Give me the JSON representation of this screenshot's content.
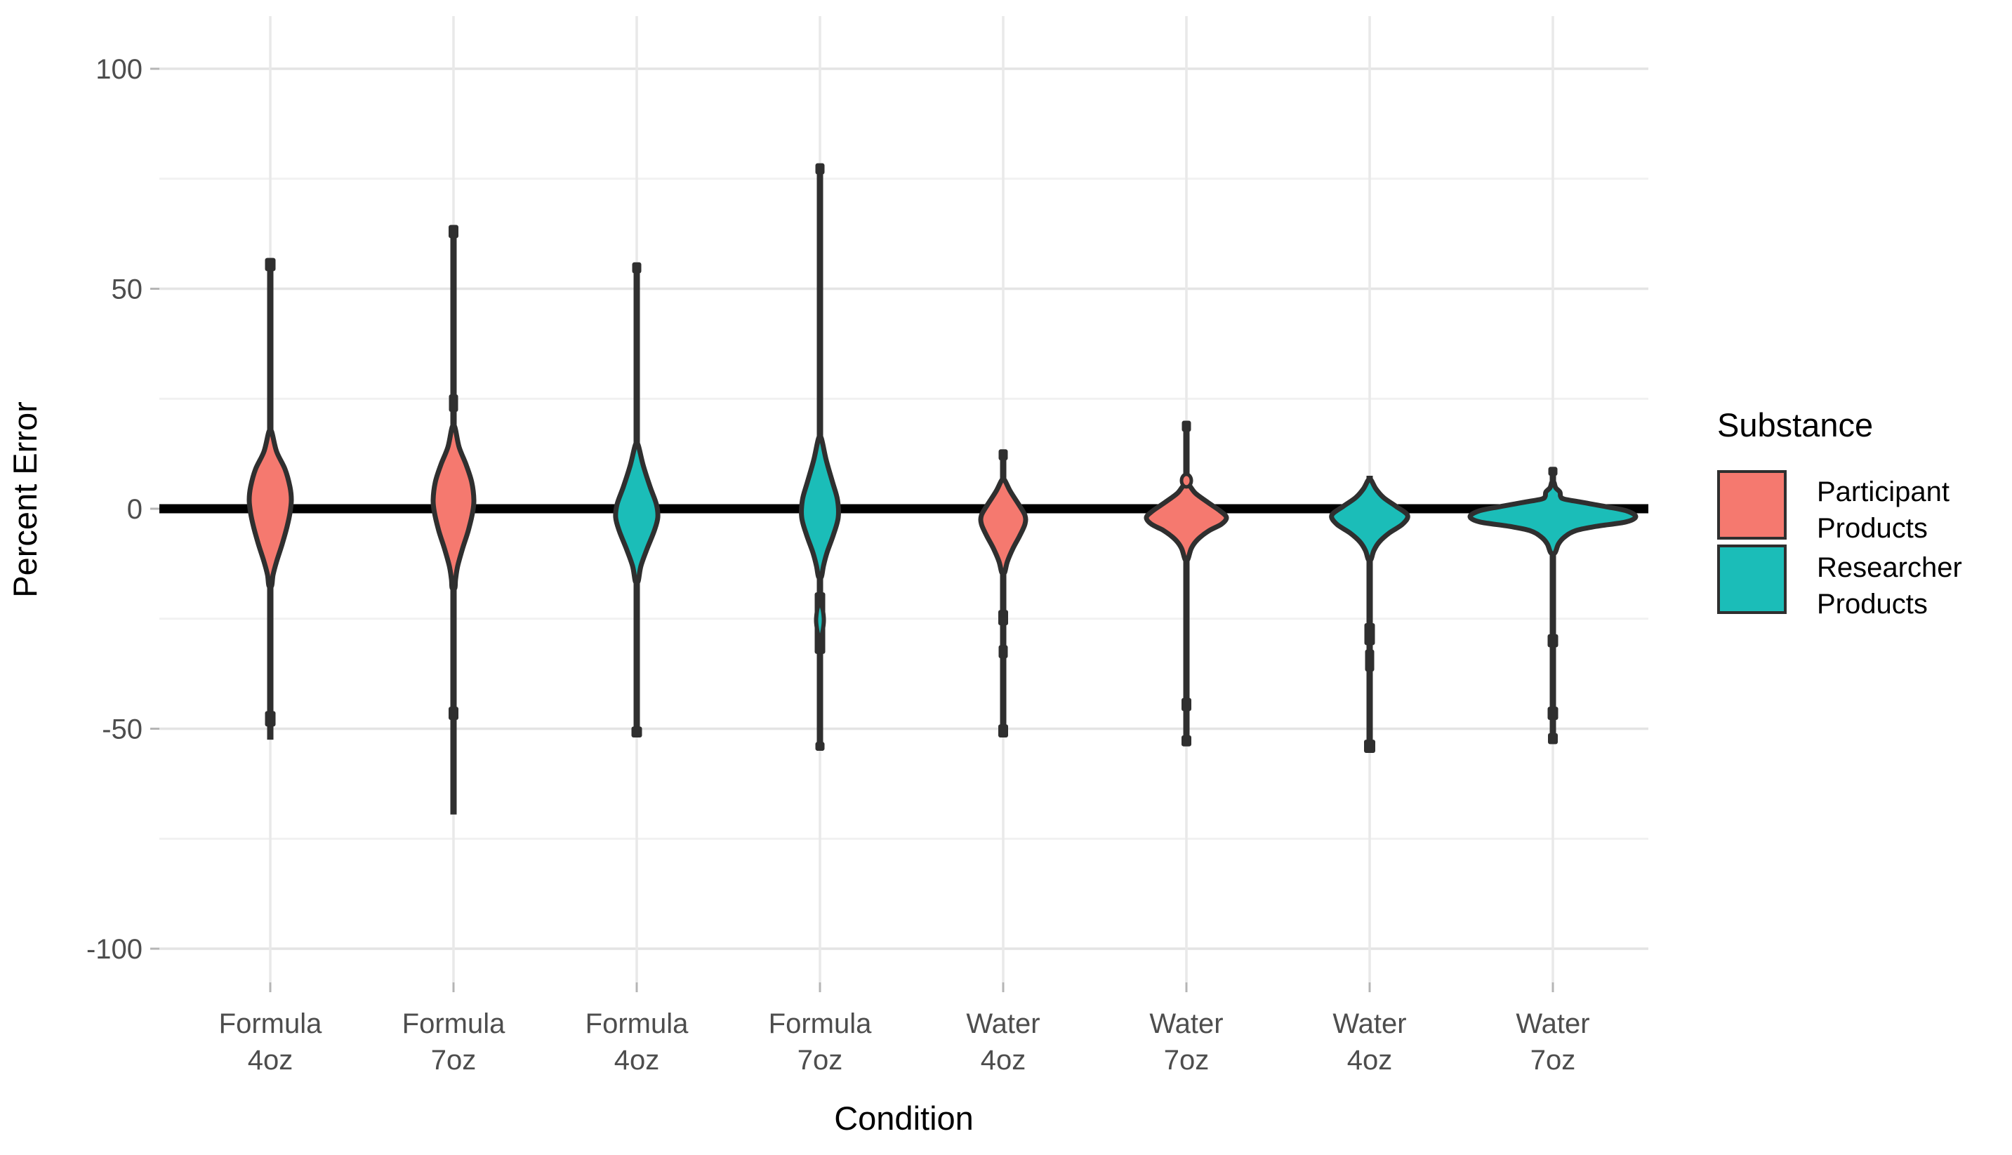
{
  "chart_data": {
    "type": "violin",
    "title": "",
    "xlabel": "Condition",
    "ylabel": "Percent Error",
    "ylim": [
      -112,
      112
    ],
    "yticks": [
      100,
      50,
      0,
      -50,
      -100
    ],
    "ytick_labels": [
      "100",
      "50",
      "0",
      "-50",
      "-100"
    ],
    "yticks_minor": [
      75,
      25,
      -25,
      -75
    ],
    "grid": "major-and-minor-horizontal, one-vertical-line-per-category",
    "reference_line_y": 0,
    "legend": {
      "title": "Substance",
      "position": "right",
      "entries": [
        {
          "label": "Participant Products",
          "label_lines": [
            "Participant",
            "Products"
          ],
          "color": "#F5796F"
        },
        {
          "label": "Researcher Products",
          "label_lines": [
            "Researcher",
            "Products"
          ],
          "color": "#1BBDB8"
        }
      ]
    },
    "colors": {
      "participant": "#F5796F",
      "researcher": "#1BBDB8",
      "outline": "#2F2F2F",
      "reference_line": "#000000",
      "grid_major": "#E4E4E4",
      "grid_minor": "#F1F1F1",
      "tick_text": "#4D4D4D",
      "axis_title_text": "#000000"
    },
    "categories": [
      {
        "line1": "Formula",
        "line2": "4oz"
      },
      {
        "line1": "Formula",
        "line2": "7oz"
      },
      {
        "line1": "Formula",
        "line2": "4oz"
      },
      {
        "line1": "Formula",
        "line2": "7oz"
      },
      {
        "line1": "Water",
        "line2": "4oz"
      },
      {
        "line1": "Water",
        "line2": "7oz"
      },
      {
        "line1": "Water",
        "line2": "4oz"
      },
      {
        "line1": "Water",
        "line2": "7oz"
      }
    ],
    "violins": [
      {
        "condition": "Formula 4oz",
        "substance": "Participant Products",
        "color_key": "participant",
        "max": 57,
        "min": -52.5,
        "widest_at": 2,
        "outline": [
          [
            17.5,
            2
          ],
          [
            13,
            9
          ],
          [
            9,
            21
          ],
          [
            5,
            28
          ],
          [
            2,
            30
          ],
          [
            -1,
            28
          ],
          [
            -4,
            24
          ],
          [
            -8,
            17
          ],
          [
            -12,
            9
          ],
          [
            -15,
            4
          ],
          [
            -17.5,
            2
          ]
        ],
        "knots": [
          [
            57,
            54,
            15
          ],
          [
            -46,
            -49.5,
            15
          ]
        ]
      },
      {
        "condition": "Formula 7oz",
        "substance": "Participant Products",
        "color_key": "participant",
        "max": 64.5,
        "min": -69.5,
        "widest_at": 2,
        "outline": [
          [
            18.5,
            2
          ],
          [
            14,
            8
          ],
          [
            10,
            18
          ],
          [
            6,
            26
          ],
          [
            2,
            29
          ],
          [
            -1,
            27
          ],
          [
            -5,
            21
          ],
          [
            -9,
            13
          ],
          [
            -13,
            6
          ],
          [
            -16,
            3
          ],
          [
            -18,
            2
          ]
        ],
        "knots": [
          [
            64.5,
            61.5,
            14
          ],
          [
            26,
            22,
            13
          ],
          [
            -45,
            -48,
            14
          ]
        ]
      },
      {
        "condition": "Formula 4oz",
        "substance": "Researcher Products",
        "color_key": "researcher",
        "max": 56,
        "min": -52,
        "widest_at": -1,
        "outline": [
          [
            14.5,
            2
          ],
          [
            10,
            9
          ],
          [
            5,
            19
          ],
          [
            1,
            28
          ],
          [
            -2,
            30
          ],
          [
            -5,
            25
          ],
          [
            -9,
            15
          ],
          [
            -13,
            6
          ],
          [
            -16.5,
            2
          ]
        ],
        "knots": [
          [
            56,
            53.5,
            13
          ],
          [
            -49.5,
            -52,
            15
          ]
        ]
      },
      {
        "condition": "Formula 7oz",
        "substance": "Researcher Products",
        "color_key": "researcher",
        "max": 78.5,
        "min": -55,
        "widest_at": -1,
        "secondary_bump_at": -25.5,
        "outline": [
          [
            16,
            2
          ],
          [
            11,
            9
          ],
          [
            6,
            18
          ],
          [
            2,
            25
          ],
          [
            -2,
            26
          ],
          [
            -6,
            19
          ],
          [
            -10,
            10
          ],
          [
            -13,
            5
          ],
          [
            -15.5,
            2
          ]
        ],
        "knots": [
          [
            78.5,
            76,
            13
          ],
          [
            -19,
            -33,
            15
          ],
          [
            -53,
            -55,
            13
          ]
        ],
        "blob": [
          [
            -21.5,
            1
          ],
          [
            -23,
            4
          ],
          [
            -25.5,
            5.5
          ],
          [
            -28,
            3.5
          ],
          [
            -29.5,
            1
          ]
        ]
      },
      {
        "condition": "Water 4oz",
        "substance": "Participant Products",
        "color_key": "participant",
        "max": 13.5,
        "min": -52,
        "widest_at": -2,
        "outline": [
          [
            6.5,
            2
          ],
          [
            4,
            10
          ],
          [
            1,
            22
          ],
          [
            -1.5,
            31
          ],
          [
            -3.5,
            31
          ],
          [
            -6,
            24
          ],
          [
            -9,
            14
          ],
          [
            -12,
            6
          ],
          [
            -14.5,
            2
          ]
        ],
        "knots": [
          [
            13.5,
            11,
            13
          ],
          [
            -23,
            -26.5,
            14
          ],
          [
            -31,
            -34,
            13
          ],
          [
            -49,
            -52,
            14
          ]
        ]
      },
      {
        "condition": "Water 7oz",
        "substance": "Participant Products",
        "color_key": "participant",
        "max": 20,
        "min": -54,
        "widest_at": -2,
        "outline": [
          [
            5.5,
            3
          ],
          [
            3.5,
            13
          ],
          [
            1.5,
            30
          ],
          [
            -0.5,
            48
          ],
          [
            -2,
            57
          ],
          [
            -3.5,
            50
          ],
          [
            -5,
            32
          ],
          [
            -7,
            16
          ],
          [
            -9,
            7
          ],
          [
            -11.5,
            2
          ]
        ],
        "knots": [
          [
            20,
            17.5,
            13
          ],
          [
            -43,
            -46,
            14
          ],
          [
            -51.5,
            -54,
            14
          ]
        ],
        "dot": {
          "value": 6.4,
          "rx": 7,
          "ry": 9
        }
      },
      {
        "condition": "Water 4oz",
        "substance": "Researcher Products",
        "color_key": "researcher",
        "max": 7.5,
        "min": -55.5,
        "widest_at": -2,
        "outline": [
          [
            6.5,
            2
          ],
          [
            4.5,
            9
          ],
          [
            2.5,
            20
          ],
          [
            0.5,
            38
          ],
          [
            -1.5,
            54
          ],
          [
            -3.5,
            47
          ],
          [
            -5.5,
            28
          ],
          [
            -7.5,
            14
          ],
          [
            -9.5,
            6
          ],
          [
            -11.5,
            2
          ]
        ],
        "knots": [
          [
            -26,
            -31,
            15
          ],
          [
            -32,
            -37,
            13
          ],
          [
            -52.5,
            -55.5,
            16
          ]
        ]
      },
      {
        "condition": "Water 7oz",
        "substance": "Researcher Products",
        "color_key": "researcher",
        "max": 9.5,
        "min": -53.5,
        "widest_at": -2,
        "outline": [
          [
            6,
            1.5
          ],
          [
            4.8,
            4
          ],
          [
            3.8,
            10
          ],
          [
            2.8,
            11
          ],
          [
            2.2,
            16
          ],
          [
            1.5,
            40
          ],
          [
            0.5,
            75
          ],
          [
            -0.5,
            105
          ],
          [
            -1.8,
            118
          ],
          [
            -3,
            104
          ],
          [
            -4,
            62
          ],
          [
            -5,
            32
          ],
          [
            -6.5,
            16
          ],
          [
            -8,
            8
          ],
          [
            -10,
            3
          ]
        ],
        "knots": [
          [
            9.5,
            7.5,
            13
          ],
          [
            -28.5,
            -31.5,
            15
          ],
          [
            -45,
            -48,
            15
          ],
          [
            -51,
            -53.5,
            14
          ]
        ]
      }
    ]
  }
}
